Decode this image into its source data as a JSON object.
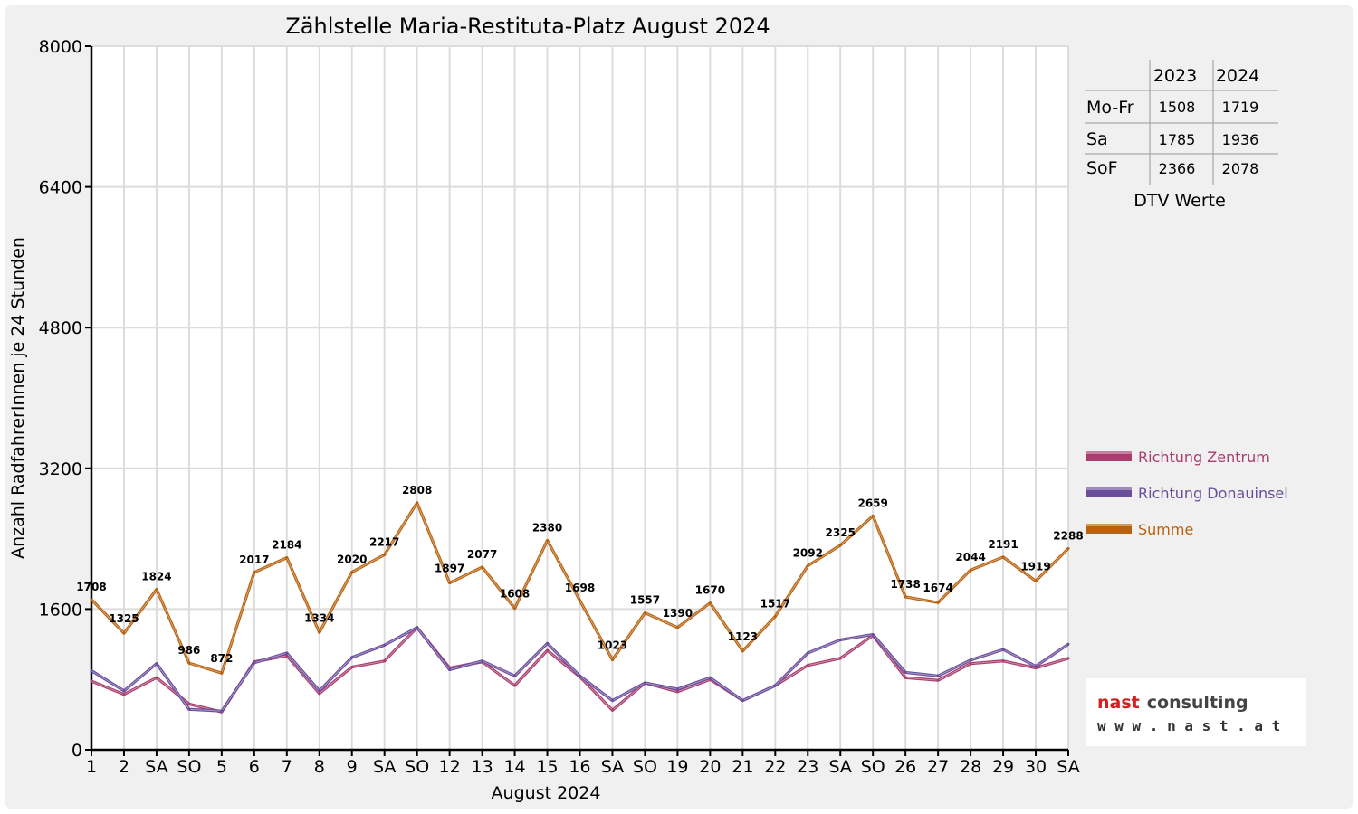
{
  "chart_data": {
    "type": "line",
    "title": "Zählstelle Maria-Restituta-Platz August 2024",
    "xlabel": "August 2024",
    "ylabel": "Anzahl RadfahrerInnen je 24 Stunden",
    "ylim": [
      0,
      8000
    ],
    "y_ticks": [
      "0",
      "1600",
      "3200",
      "4800",
      "6400",
      "8000"
    ],
    "grid": true,
    "legend_position": "right",
    "categories": [
      "1",
      "2",
      "SA",
      "SO",
      "5",
      "6",
      "7",
      "8",
      "9",
      "SA",
      "SO",
      "12",
      "13",
      "14",
      "15",
      "16",
      "SA",
      "SO",
      "19",
      "20",
      "21",
      "22",
      "23",
      "SA",
      "SO",
      "26",
      "27",
      "28",
      "29",
      "30",
      "SA"
    ],
    "highlight_categories": [
      3,
      10,
      14,
      17,
      24
    ],
    "highlight_color": "#e00000",
    "series": [
      {
        "name": "Richtung Zentrum",
        "color": "#a83d6e",
        "values": [
          780,
          630,
          820,
          520,
          430,
          1000,
          1070,
          640,
          940,
          1010,
          1390,
          930,
          1000,
          730,
          1130,
          830,
          450,
          760,
          660,
          800,
          560,
          730,
          960,
          1040,
          1300,
          820,
          790,
          980,
          1010,
          930,
          1040
        ]
      },
      {
        "name": "Richtung Donauinsel",
        "color": "#6a4e9c",
        "values": [
          900,
          670,
          980,
          460,
          440,
          990,
          1100,
          670,
          1050,
          1190,
          1390,
          910,
          1010,
          840,
          1210,
          840,
          560,
          760,
          690,
          820,
          560,
          730,
          1100,
          1250,
          1310,
          880,
          840,
          1020,
          1140,
          950,
          1200
        ]
      },
      {
        "name": "Summe",
        "color": "#b8620f",
        "values": [
          1708,
          1325,
          1824,
          986,
          872,
          2017,
          2184,
          1334,
          2020,
          2217,
          2808,
          1897,
          2077,
          1608,
          2380,
          1698,
          1023,
          1557,
          1390,
          1670,
          1123,
          1517,
          2092,
          2325,
          2659,
          1738,
          1674,
          2044,
          2191,
          1919,
          2288
        ],
        "labels": [
          "1708",
          "1325",
          "1824",
          "986",
          "872",
          "2017",
          "2184",
          "1334",
          "2020",
          "2217",
          "2808",
          "1897",
          "2077",
          "1608",
          "2380",
          "1698",
          "1023",
          "1557",
          "1390",
          "1670",
          "1123",
          "1517",
          "2092",
          "2325",
          "2659",
          "1738",
          "1674",
          "2044",
          "2191",
          "1919",
          "2288"
        ]
      }
    ]
  },
  "dtv_table": {
    "headers": [
      "",
      "2023",
      "2024"
    ],
    "rows": [
      {
        "label": "Mo-Fr",
        "v2023": "1508",
        "v2024": "1719"
      },
      {
        "label": "Sa",
        "v2023": "1785",
        "v2024": "1936"
      },
      {
        "label": "SoF",
        "v2023": "2366",
        "v2024": "2078"
      }
    ],
    "caption": "DTV Werte"
  },
  "logo": {
    "brand_left": "nast",
    "brand_right": "consulting",
    "url": "w w w . n a s t . a t",
    "brand_color": "#d42020",
    "brand_dark": "#444444"
  }
}
